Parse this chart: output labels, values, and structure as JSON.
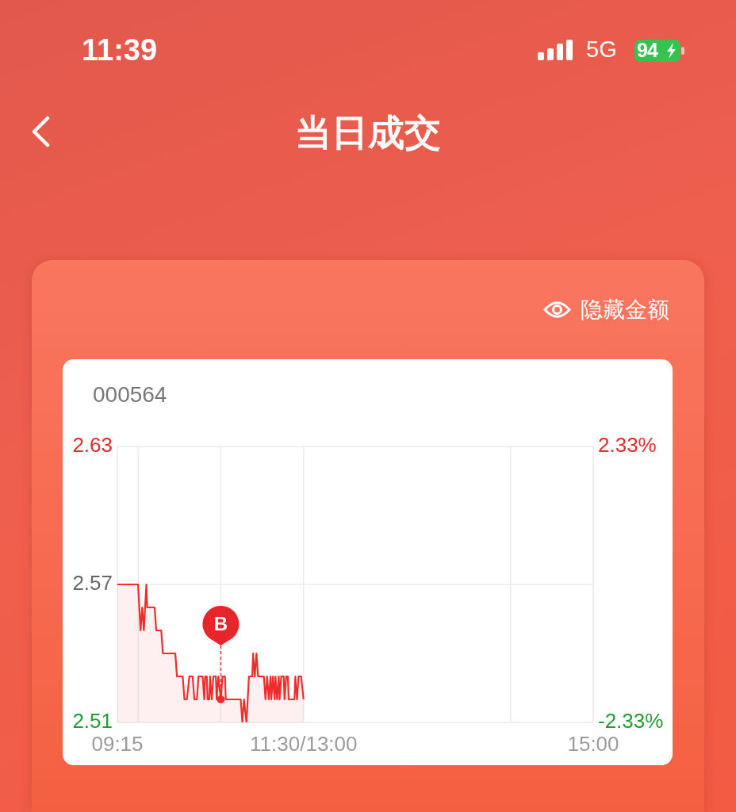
{
  "chart_data": {
    "type": "area",
    "title": "当日成交",
    "subtitle": "000564",
    "annotations": [
      "11:39",
      "5G",
      "94",
      "隐藏金额",
      {
        "text": "B",
        "x": 10.5,
        "y": 2.52
      }
    ],
    "x": [
      9.25,
      9.5,
      9.53,
      9.55,
      9.57,
      9.6,
      9.61,
      9.7,
      9.72,
      9.78,
      9.8,
      9.95,
      9.97,
      10.04,
      10.06,
      10.09,
      10.12,
      10.16,
      10.18,
      10.21,
      10.23,
      10.28,
      10.3,
      10.31,
      10.33,
      10.34,
      10.36,
      10.37,
      10.39,
      10.41,
      10.44,
      10.45,
      10.47,
      10.5,
      10.52,
      10.55,
      10.56,
      10.74,
      10.76,
      10.78,
      10.81,
      10.84,
      10.88,
      10.89,
      10.91,
      10.93,
      10.95,
      11.02,
      11.04,
      11.06,
      11.08,
      11.1,
      11.11,
      11.13,
      11.15,
      11.16,
      11.18,
      11.2,
      11.21,
      11.23,
      11.26,
      11.27,
      11.29,
      11.31,
      11.32,
      11.39,
      11.4,
      11.42,
      11.44,
      11.47,
      11.5
    ],
    "values": [
      2.57,
      2.57,
      2.55,
      2.56,
      2.55,
      2.57,
      2.56,
      2.56,
      2.55,
      2.55,
      2.54,
      2.54,
      2.53,
      2.53,
      2.52,
      2.52,
      2.53,
      2.53,
      2.52,
      2.52,
      2.53,
      2.53,
      2.52,
      2.53,
      2.53,
      2.52,
      2.52,
      2.53,
      2.52,
      2.53,
      2.53,
      2.52,
      2.53,
      2.52,
      2.53,
      2.53,
      2.52,
      2.52,
      2.51,
      2.52,
      2.51,
      2.53,
      2.53,
      2.54,
      2.53,
      2.54,
      2.53,
      2.53,
      2.52,
      2.53,
      2.52,
      2.53,
      2.52,
      2.53,
      2.52,
      2.53,
      2.52,
      2.53,
      2.52,
      2.53,
      2.53,
      2.52,
      2.53,
      2.53,
      2.52,
      2.52,
      2.53,
      2.52,
      2.53,
      2.53,
      2.52
    ],
    "color": "#f02c2c",
    "xlim": [
      9.25,
      15
    ],
    "xticks": [
      {
        "value": 9.25,
        "label": "09:15"
      },
      {
        "value": 9.5,
        "label": null
      },
      {
        "value": 10.5,
        "label": null
      },
      {
        "value": 11.5,
        "label": "11:30/13:00"
      },
      {
        "value": 14,
        "label": null
      },
      {
        "value": 15,
        "label": "15:00"
      }
    ],
    "ylim": [
      2.51,
      2.63
    ],
    "yticks": [
      2.51,
      2.57,
      2.63
    ],
    "y2lim": [
      -2.33,
      2.33
    ],
    "y2ticks": [
      {
        "value": -2.33,
        "label": "-2.33%"
      },
      {
        "value": 2.33,
        "label": "2.33%"
      }
    ],
    "grid": true
  }
}
